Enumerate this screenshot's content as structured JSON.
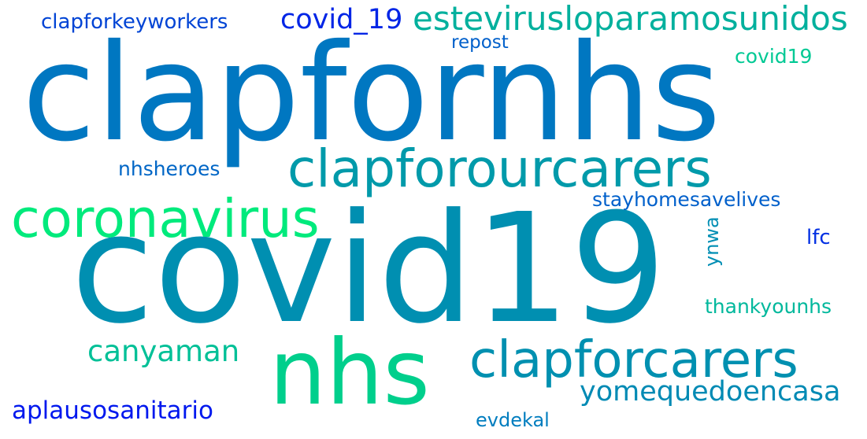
{
  "word_cloud": {
    "words": [
      {
        "text": "clapfornhs",
        "color": "#0077c1"
      },
      {
        "text": "covid19",
        "color": "#008fb1"
      },
      {
        "text": "nhs",
        "color": "#00cf8c"
      },
      {
        "text": "clapforourcarers",
        "color": "#009aaa"
      },
      {
        "text": "coronavirus",
        "color": "#00ea7c"
      },
      {
        "text": "clapforcarers",
        "color": "#0090b0"
      },
      {
        "text": "estevirusloparamosunidos",
        "color": "#00b09d"
      },
      {
        "text": "covid_19",
        "color": "#0025e6"
      },
      {
        "text": "clapforkeyworkers",
        "color": "#0044d5"
      },
      {
        "text": "repost",
        "color": "#0060cb"
      },
      {
        "text": "covid​19",
        "color": "#00c994"
      },
      {
        "text": "nhsheroes",
        "color": "#0066c6"
      },
      {
        "text": "stayhomesavelives",
        "color": "#0060cb"
      },
      {
        "text": "lfc",
        "color": "#002ee3"
      },
      {
        "text": "ynwa",
        "color": "#008eb4"
      },
      {
        "text": "thankyounhs",
        "color": "#00b89c"
      },
      {
        "text": "canyaman",
        "color": "#00c097"
      },
      {
        "text": "yomequedoencasa",
        "color": "#008ab4"
      },
      {
        "text": "aplausosanitario",
        "color": "#0018ee"
      },
      {
        "text": "evdekal",
        "color": "#007dbf"
      }
    ]
  }
}
